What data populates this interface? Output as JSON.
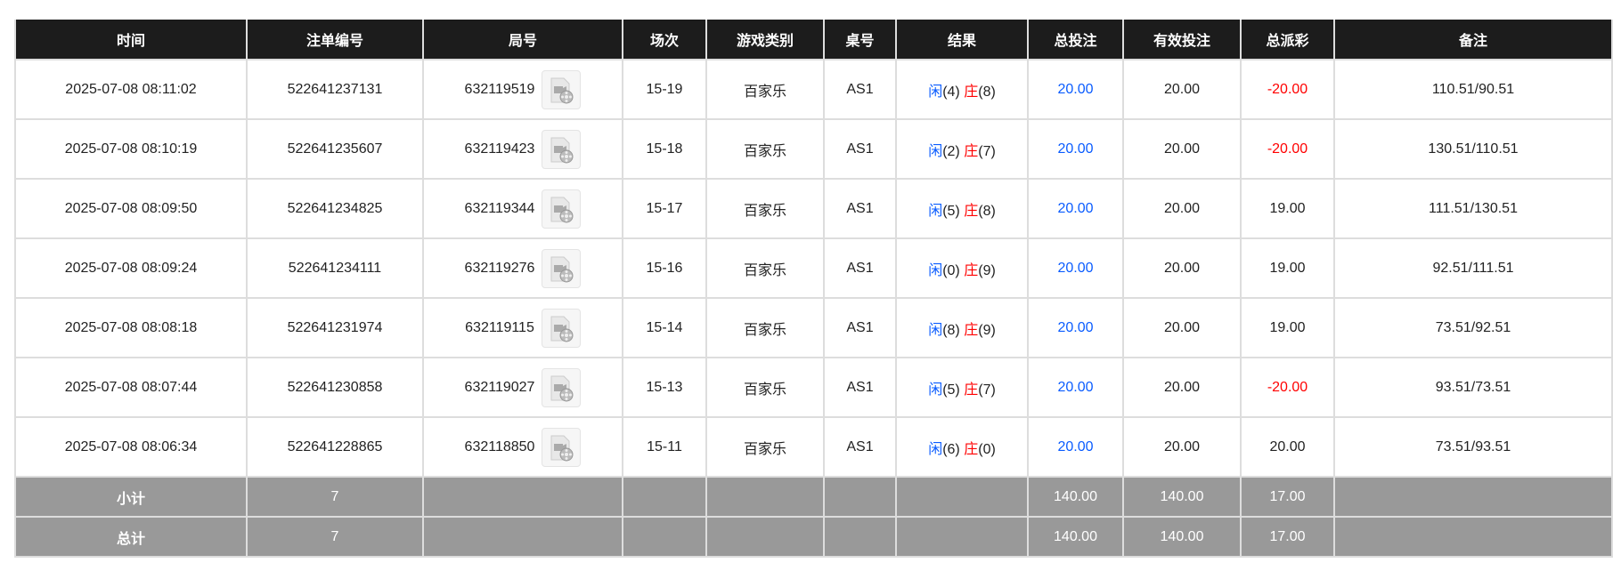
{
  "headers": [
    "时间",
    "注单编号",
    "局号",
    "场次",
    "游戏类别",
    "桌号",
    "结果",
    "总投注",
    "有效投注",
    "总派彩",
    "备注"
  ],
  "colors": {
    "header_bg": "#1c1c1c",
    "player": "#0a5cff",
    "banker": "#ff0000",
    "negative": "#ff0000",
    "summary_bg": "#999999"
  },
  "rows": [
    {
      "time": "2025-07-08 08:11:02",
      "bet_id": "522641237131",
      "round": "632119519",
      "shoe": "15-19",
      "game": "百家乐",
      "table": "AS1",
      "p_label": "闲",
      "p_score": "(4)",
      "b_label": "庄",
      "b_score": "(8)",
      "total_bet": "20.00",
      "valid_bet": "20.00",
      "payout": "-20.00",
      "payout_negative": true,
      "note": "110.51/90.51"
    },
    {
      "time": "2025-07-08 08:10:19",
      "bet_id": "522641235607",
      "round": "632119423",
      "shoe": "15-18",
      "game": "百家乐",
      "table": "AS1",
      "p_label": "闲",
      "p_score": "(2)",
      "b_label": "庄",
      "b_score": "(7)",
      "total_bet": "20.00",
      "valid_bet": "20.00",
      "payout": "-20.00",
      "payout_negative": true,
      "note": "130.51/110.51"
    },
    {
      "time": "2025-07-08 08:09:50",
      "bet_id": "522641234825",
      "round": "632119344",
      "shoe": "15-17",
      "game": "百家乐",
      "table": "AS1",
      "p_label": "闲",
      "p_score": "(5)",
      "b_label": "庄",
      "b_score": "(8)",
      "total_bet": "20.00",
      "valid_bet": "20.00",
      "payout": "19.00",
      "payout_negative": false,
      "note": "111.51/130.51"
    },
    {
      "time": "2025-07-08 08:09:24",
      "bet_id": "522641234111",
      "round": "632119276",
      "shoe": "15-16",
      "game": "百家乐",
      "table": "AS1",
      "p_label": "闲",
      "p_score": "(0)",
      "b_label": "庄",
      "b_score": "(9)",
      "total_bet": "20.00",
      "valid_bet": "20.00",
      "payout": "19.00",
      "payout_negative": false,
      "note": "92.51/111.51"
    },
    {
      "time": "2025-07-08 08:08:18",
      "bet_id": "522641231974",
      "round": "632119115",
      "shoe": "15-14",
      "game": "百家乐",
      "table": "AS1",
      "p_label": "闲",
      "p_score": "(8)",
      "b_label": "庄",
      "b_score": "(9)",
      "total_bet": "20.00",
      "valid_bet": "20.00",
      "payout": "19.00",
      "payout_negative": false,
      "note": "73.51/92.51"
    },
    {
      "time": "2025-07-08 08:07:44",
      "bet_id": "522641230858",
      "round": "632119027",
      "shoe": "15-13",
      "game": "百家乐",
      "table": "AS1",
      "p_label": "闲",
      "p_score": "(5)",
      "b_label": "庄",
      "b_score": "(7)",
      "total_bet": "20.00",
      "valid_bet": "20.00",
      "payout": "-20.00",
      "payout_negative": true,
      "note": "93.51/73.51"
    },
    {
      "time": "2025-07-08 08:06:34",
      "bet_id": "522641228865",
      "round": "632118850",
      "shoe": "15-11",
      "game": "百家乐",
      "table": "AS1",
      "p_label": "闲",
      "p_score": "(6)",
      "b_label": "庄",
      "b_score": "(0)",
      "total_bet": "20.00",
      "valid_bet": "20.00",
      "payout": "20.00",
      "payout_negative": false,
      "note": "73.51/93.51"
    }
  ],
  "subtotal": {
    "label": "小计",
    "count": "7",
    "total_bet": "140.00",
    "valid_bet": "140.00",
    "payout": "17.00"
  },
  "total": {
    "label": "总计",
    "count": "7",
    "total_bet": "140.00",
    "valid_bet": "140.00",
    "payout": "17.00"
  },
  "icons": {
    "replay": "video-file-icon"
  }
}
